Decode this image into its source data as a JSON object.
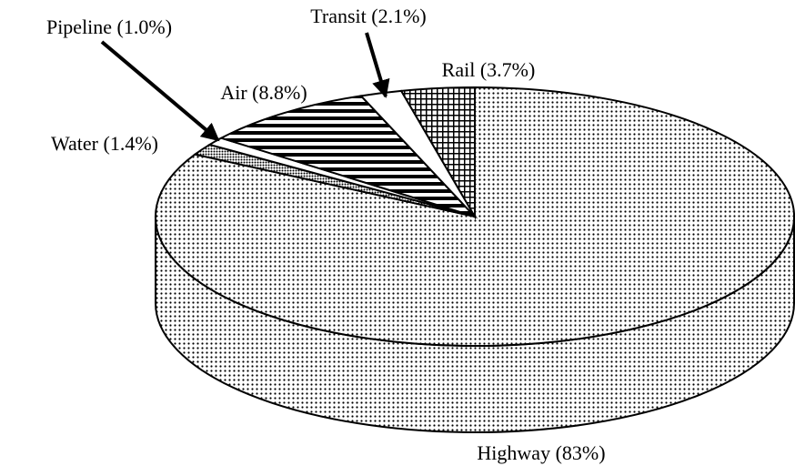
{
  "chart_data": {
    "type": "pie",
    "categories": [
      "Highway (83%)",
      "Water (1.4%)",
      "Pipeline (1.0%)",
      "Air (8.8%)",
      "Transit (2.1%)",
      "Rail (3.7%)"
    ],
    "values": [
      83,
      1.4,
      1.0,
      8.8,
      2.1,
      3.7
    ]
  }
}
